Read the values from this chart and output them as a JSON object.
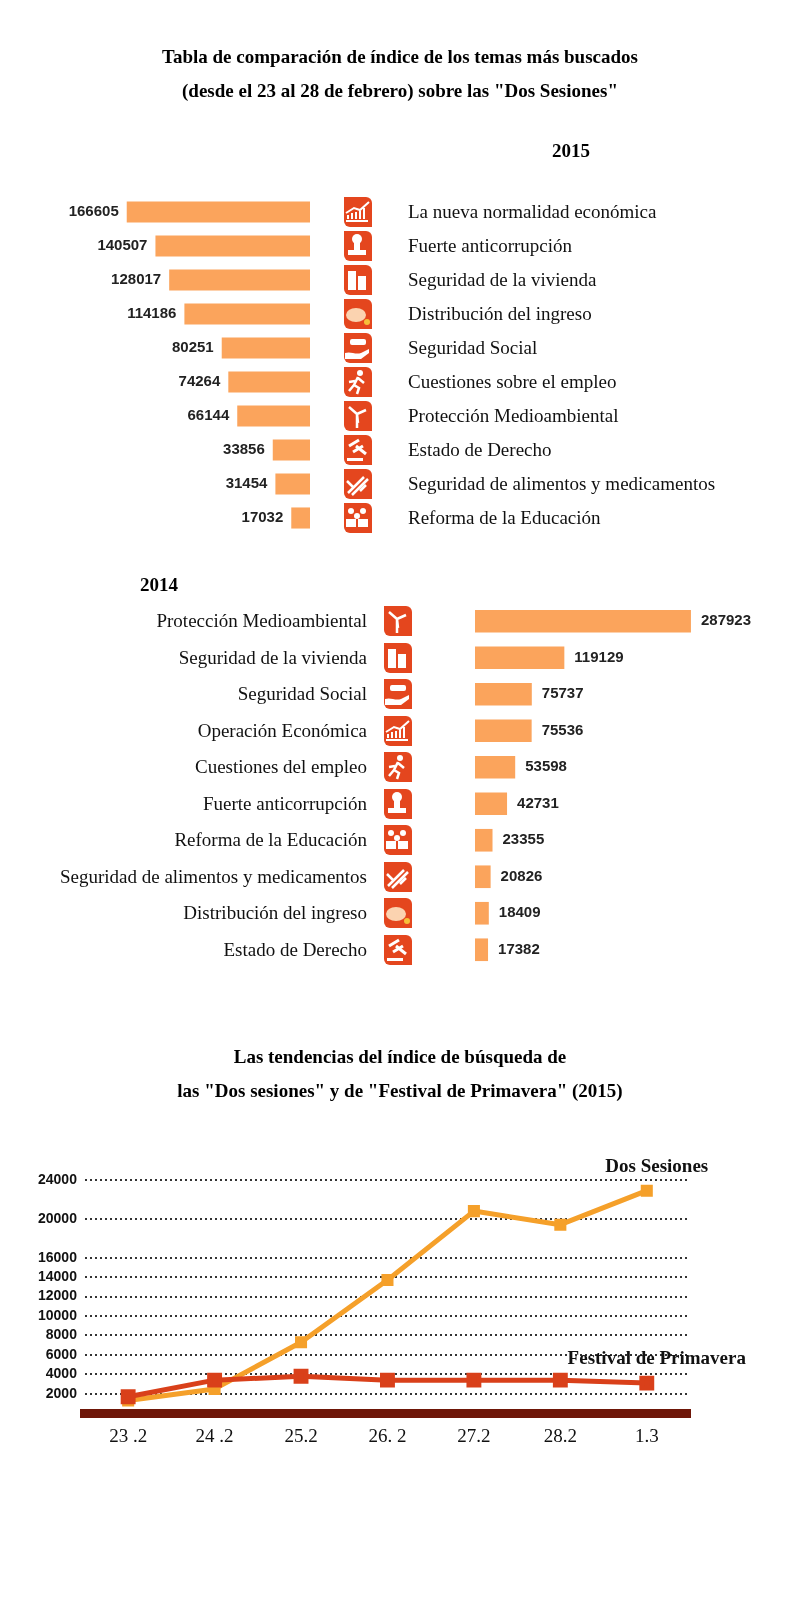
{
  "chart_data": [
    {
      "type": "bar",
      "title": "Tabla de comparación de índice de los temas más buscados",
      "subtitle": "(desde el 23 al 28 de febrero) sobre las \"Dos Sesiones\"",
      "annotations": [
        "2015"
      ],
      "orientation": "horizontal",
      "categories": [
        "La nueva normalidad económica",
        "Fuerte anticorrupción",
        "Seguridad de la vivienda",
        "Distribución del ingreso",
        "Seguridad Social",
        "Cuestiones sobre el empleo",
        "Protección Medioambiental",
        "Estado de Derecho",
        "Seguridad de alimentos y medicamentos",
        "Reforma de la Educación"
      ],
      "values": [
        166605,
        140507,
        128017,
        114186,
        80251,
        74264,
        66144,
        33856,
        31454,
        17032
      ],
      "color": "#fba45c",
      "data_labels": true,
      "tick_labels": "y"
    },
    {
      "type": "bar",
      "title": "2014",
      "orientation": "horizontal",
      "categories": [
        "Protección Medioambiental",
        "Seguridad de la vivienda",
        "Seguridad Social",
        "Operación Económica",
        "Cuestiones del empleo",
        "Fuerte anticorrupción",
        "Reforma de la Educación",
        "Seguridad de alimentos y medicamentos",
        "Distribución del ingreso",
        "Estado de Derecho"
      ],
      "values": [
        287923,
        119129,
        75737,
        75536,
        53598,
        42731,
        23355,
        20826,
        18409,
        17382
      ],
      "color": "#fba45c",
      "data_labels": true,
      "tick_labels": "y"
    },
    {
      "type": "line",
      "title": "Las tendencias del índice de búsqueda de",
      "subtitle": "las \"Dos sesiones\" y de \"Festival de Primavera\" (2015)",
      "categories": [
        "23 .2",
        "24 .2",
        "25.2",
        "26. 2",
        "27.2",
        "28.2",
        "1.3"
      ],
      "series": [
        {
          "name": "Dos Sesiones",
          "color": "#f5a02a",
          "values": [
            1300,
            2500,
            7300,
            13700,
            20800,
            19400,
            22900
          ]
        },
        {
          "name": "Festival de Primavera",
          "color": "#d9401a",
          "values": [
            1700,
            3400,
            3800,
            3400,
            3400,
            3400,
            3100
          ]
        }
      ],
      "ylim": [
        0,
        24000
      ],
      "yticks": [
        2000,
        4000,
        6000,
        8000,
        10000,
        12000,
        14000,
        16000,
        20000,
        24000
      ],
      "grid": "y",
      "marker": "square",
      "line_style": "solid",
      "legend": false
    }
  ]
}
